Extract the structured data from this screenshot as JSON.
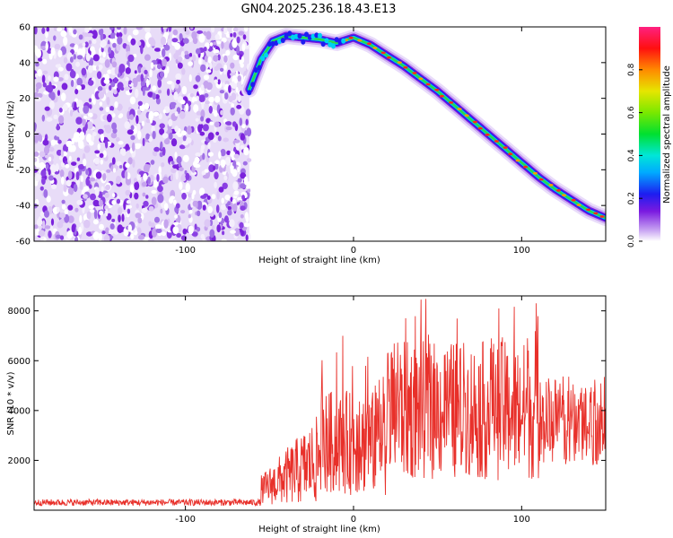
{
  "title": "GN04.2025.236.18.43.E13",
  "chart_data": [
    {
      "type": "heatmap",
      "name": "spectrogram",
      "xlabel": "Height of straight line (km)",
      "ylabel": "Frequency (Hz)",
      "xlim": [
        -190,
        150
      ],
      "ylim": [
        -60,
        60
      ],
      "xticks": [
        -100,
        0,
        100
      ],
      "yticks": [
        -60,
        -40,
        -20,
        0,
        20,
        40,
        60
      ],
      "noise_region_x": [
        -190,
        -62
      ],
      "signal_ridge": {
        "x": [
          -62,
          -55,
          -48,
          -40,
          -30,
          -20,
          -10,
          0,
          10,
          20,
          30,
          40,
          50,
          60,
          70,
          80,
          90,
          100,
          110,
          120,
          130,
          140,
          150
        ],
        "freq": [
          25,
          42,
          52,
          55,
          54,
          53,
          51,
          54,
          50,
          44,
          38,
          31,
          24,
          16,
          8,
          0,
          -8,
          -16,
          -24,
          -31,
          -37,
          -43,
          -47
        ]
      },
      "colorbar": {
        "label": "Normalized spectral amplitude",
        "range": [
          0.0,
          1.0
        ],
        "ticks": [
          0.0,
          0.2,
          0.4,
          0.6,
          0.8
        ]
      }
    },
    {
      "type": "line",
      "name": "snr",
      "xlabel": "Height of straight line (km)",
      "ylabel": "SNR (10 * v/v)",
      "xlim": [
        -190,
        150
      ],
      "ylim": [
        0,
        8600
      ],
      "xticks": [
        -100,
        0,
        100
      ],
      "yticks": [
        2000,
        4000,
        6000,
        8000
      ],
      "color": "#e8302a",
      "series": [
        {
          "name": "SNR",
          "x_range": [
            -190,
            150
          ],
          "baseline_region": [
            -190,
            -55
          ],
          "baseline_level": 300,
          "typical_peak": 8600
        }
      ]
    }
  ]
}
